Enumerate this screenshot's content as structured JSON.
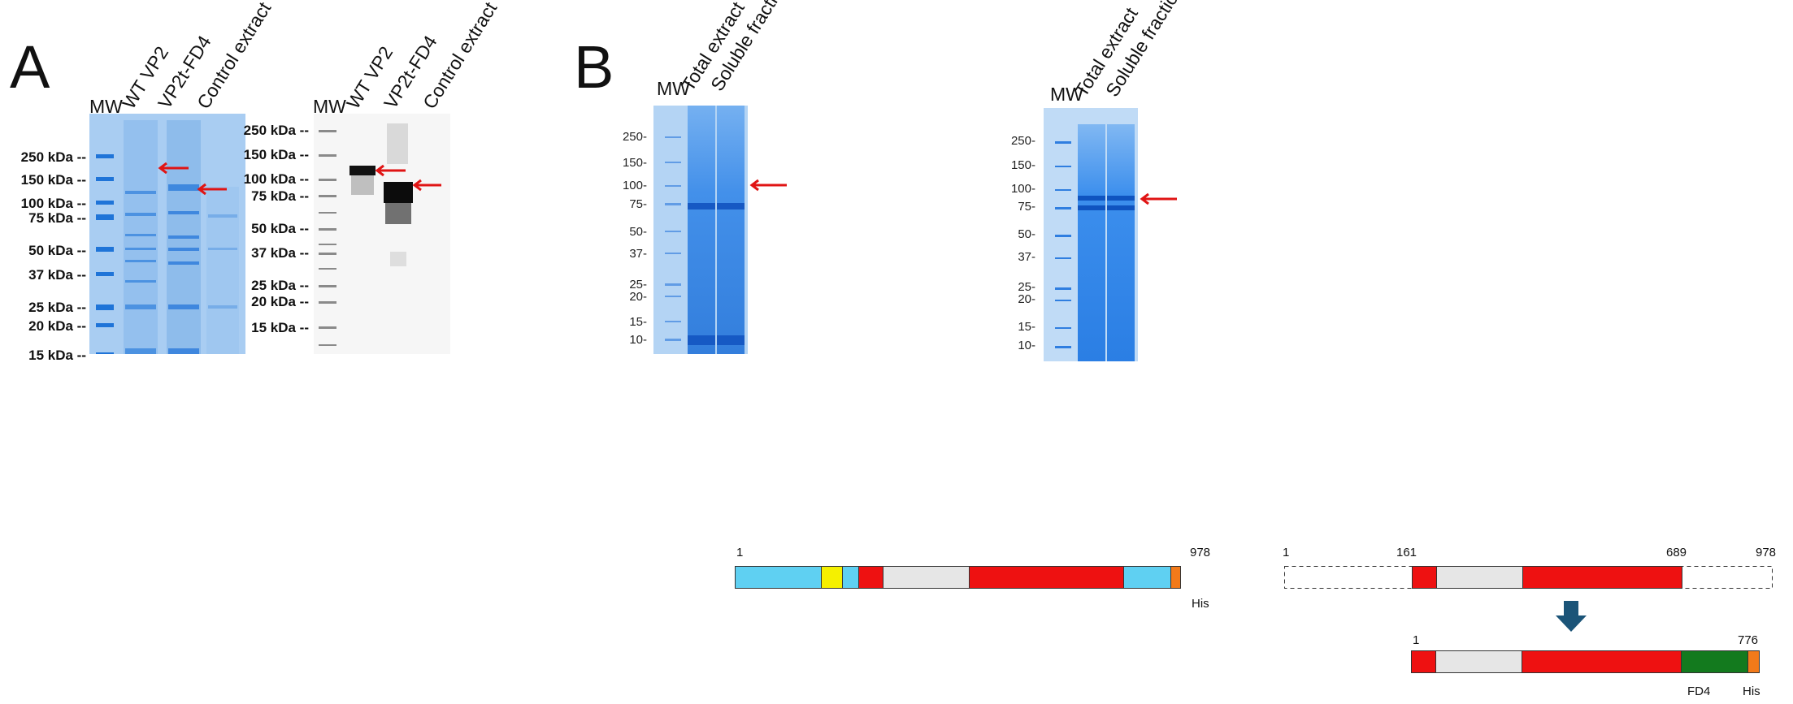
{
  "panel_a": {
    "letter": "A",
    "coomassie": {
      "mw_label": "MW",
      "lanes": [
        "WT VP2",
        "VP2t-FD4",
        "Control extract"
      ],
      "markers": [
        "250 kDa --",
        "150 kDa --",
        "100 kDa --",
        "75 kDa --",
        "50 kDa --",
        "37 kDa --",
        "25 kDa --",
        "20 kDa --",
        "15 kDa --"
      ]
    },
    "western": {
      "mw_label": "MW",
      "lanes": [
        "WT VP2",
        "VP2t-FD4",
        "Control extract"
      ],
      "markers": [
        "250 kDa --",
        "150 kDa --",
        "100 kDa --",
        "75 kDa --",
        "50 kDa --",
        "37 kDa --",
        "25 kDa --",
        "20 kDa --",
        "15 kDa --"
      ]
    }
  },
  "panel_b": {
    "letter": "B",
    "gel1": {
      "mw_label": "MW",
      "lanes": [
        "Total extract",
        "Soluble fraction"
      ],
      "markers": [
        "250-",
        "150-",
        "100-",
        "75-",
        "50-",
        "37-",
        "25-",
        "20-",
        "15-",
        "10-"
      ]
    },
    "gel2": {
      "mw_label": "MW",
      "lanes": [
        "Total extract",
        "Soluble fraction"
      ],
      "markers": [
        "250-",
        "150-",
        "100-",
        "75-",
        "50-",
        "37-",
        "25-",
        "20-",
        "15-",
        "10-"
      ]
    },
    "construct_full": {
      "start": "1",
      "end": "978",
      "tag": "His"
    },
    "construct_truncated": {
      "start": "1",
      "pos_a": "161",
      "pos_b": "689",
      "end": "978"
    },
    "construct_fusion": {
      "start": "1",
      "end": "776",
      "domain": "FD4",
      "tag": "His"
    }
  },
  "colors": {
    "coomassie_bg": "#a9cdf2",
    "band_blue": "#1f74d8",
    "arrow_red": "#e01414",
    "seg_cyan": "#5fd0f2",
    "seg_yellow": "#f5f000",
    "seg_red": "#ee1111",
    "seg_gray": "#e6e6e6",
    "seg_orange": "#f27a1a",
    "seg_green": "#137a1e",
    "down_arrow": "#1b5478"
  }
}
